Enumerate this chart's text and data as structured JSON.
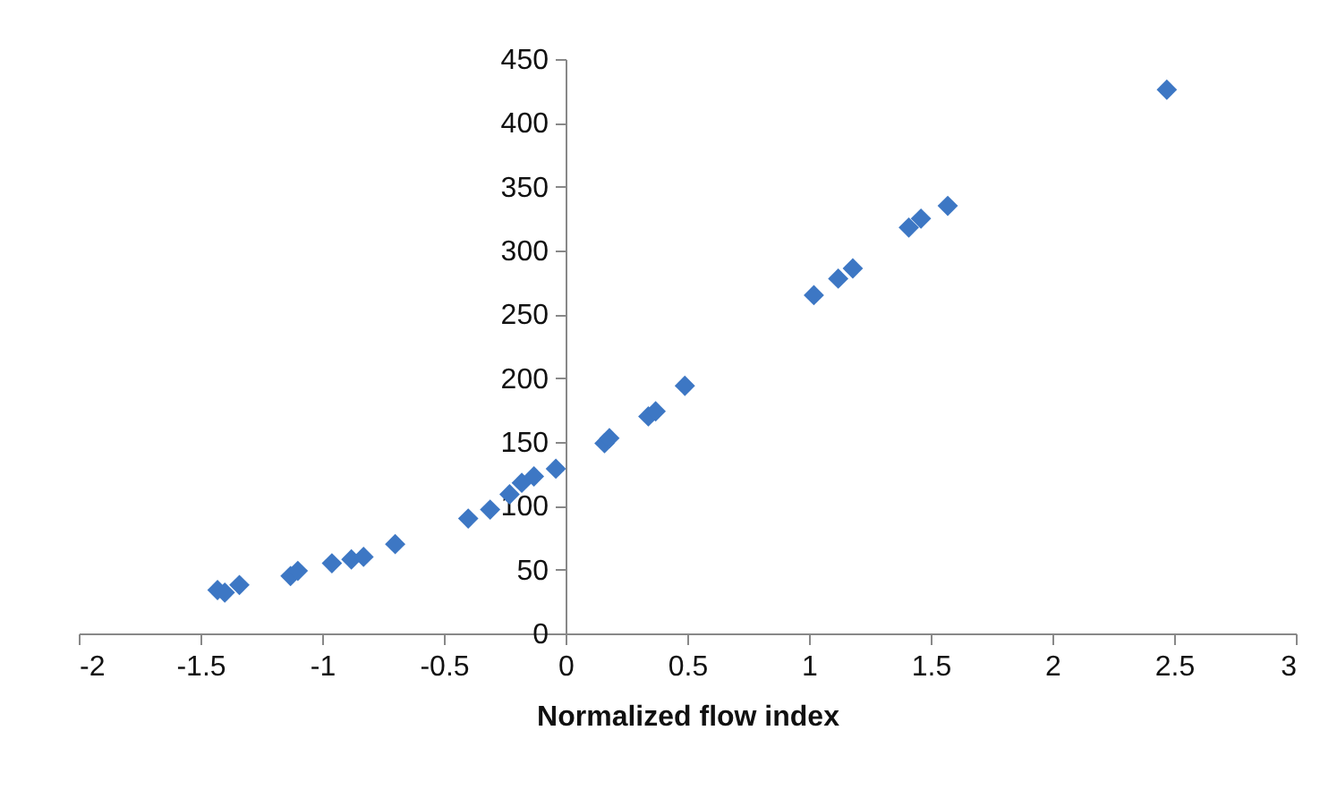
{
  "chart_data": {
    "type": "scatter",
    "xlabel": "Normalized flow index",
    "marker": "diamond",
    "grid": false,
    "xlim": [
      -2,
      3
    ],
    "xticks": [
      -2,
      -1.5,
      -1,
      -0.5,
      0,
      0.5,
      1,
      1.5,
      2,
      2.5,
      3
    ],
    "ylim": [
      0,
      450
    ],
    "yticks": [
      0,
      50,
      100,
      150,
      200,
      250,
      300,
      350,
      400,
      450
    ],
    "x": [
      -1.43,
      -1.4,
      -1.34,
      -1.13,
      -1.1,
      -0.96,
      -0.88,
      -0.83,
      -0.7,
      -0.4,
      -0.31,
      -0.23,
      -0.18,
      -0.13,
      -0.04,
      0.16,
      0.18,
      0.34,
      0.37,
      0.49,
      1.02,
      1.12,
      1.18,
      1.41,
      1.46,
      1.57,
      2.47
    ],
    "series": [
      {
        "color": "#3d77c4",
        "values": [
          34,
          32,
          38,
          45,
          49,
          55,
          58,
          60,
          70,
          90,
          97,
          109,
          118,
          123,
          129,
          149,
          153,
          170,
          174,
          194,
          265,
          278,
          286,
          318,
          325,
          335,
          426
        ]
      }
    ]
  }
}
